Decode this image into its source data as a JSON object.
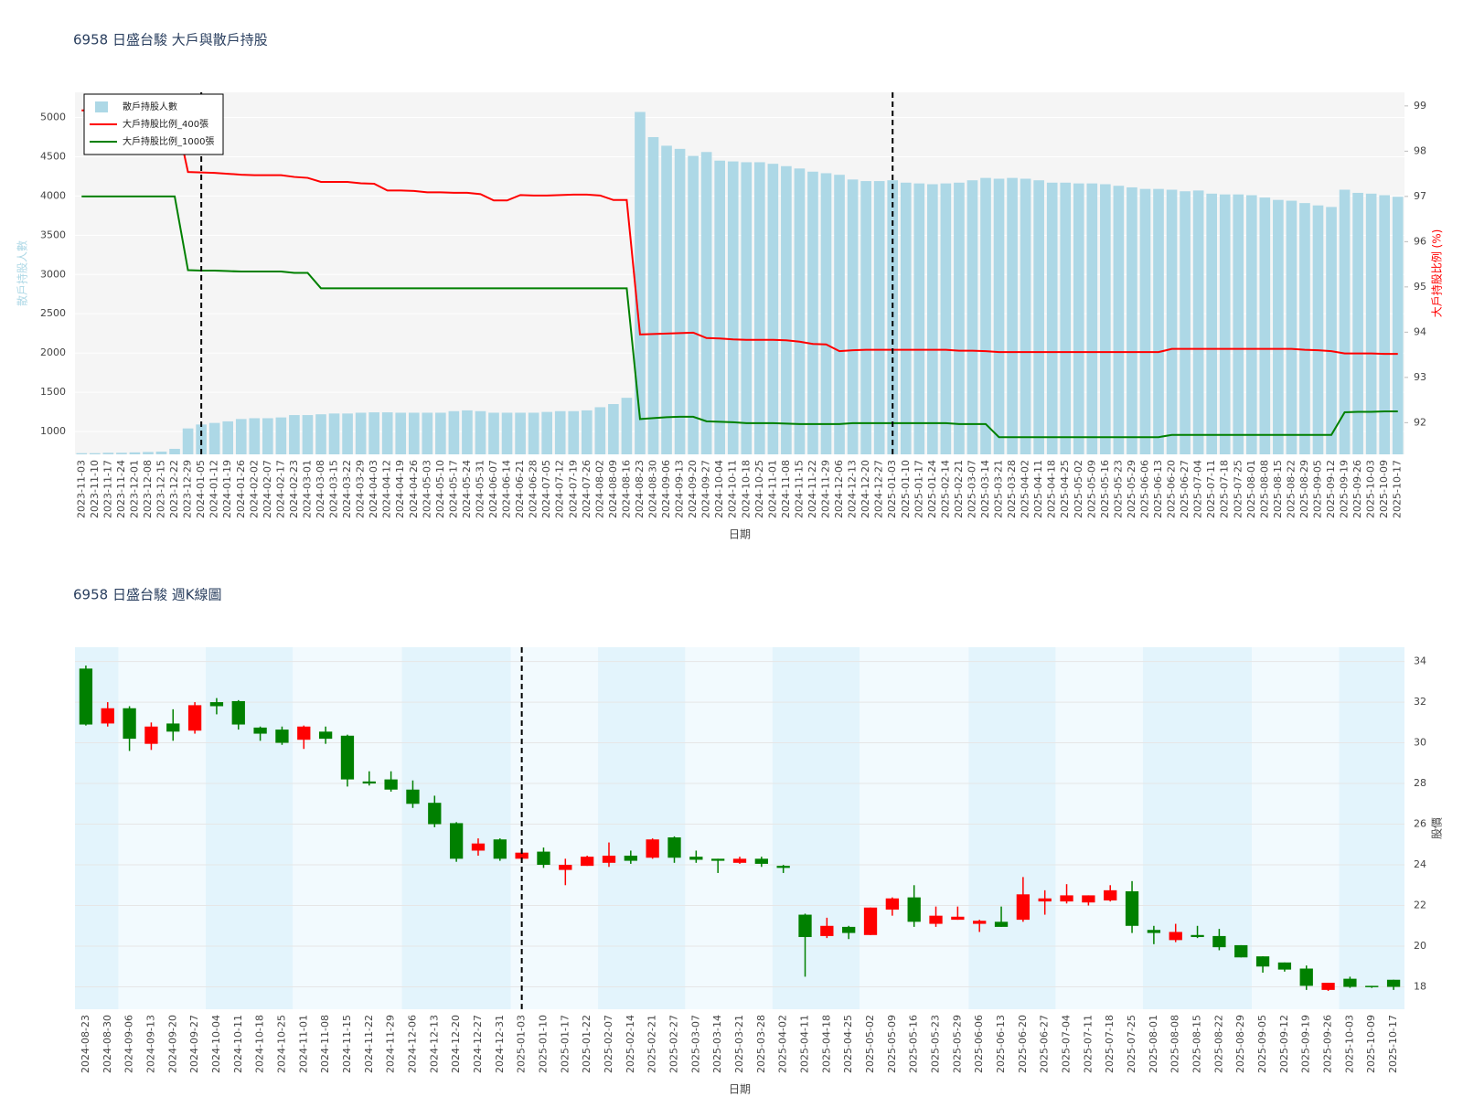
{
  "chart_data": [
    {
      "type": "combo",
      "title": "6958 日盛台駿 大戶與散戶持股",
      "x_label": "日期",
      "y_label": "散戶持股人數",
      "y2_label": "大戶持股比例 (%)",
      "categories": [
        "2023-11-03",
        "2023-11-10",
        "2023-11-17",
        "2023-11-24",
        "2023-12-01",
        "2023-12-08",
        "2023-12-15",
        "2023-12-22",
        "2023-12-29",
        "2024-01-05",
        "2024-01-12",
        "2024-01-19",
        "2024-01-26",
        "2024-02-02",
        "2024-02-07",
        "2024-02-17",
        "2024-02-23",
        "2024-03-01",
        "2024-03-08",
        "2024-03-15",
        "2024-03-22",
        "2024-03-29",
        "2024-04-03",
        "2024-04-12",
        "2024-04-19",
        "2024-04-26",
        "2024-05-03",
        "2024-05-10",
        "2024-05-17",
        "2024-05-24",
        "2024-05-31",
        "2024-06-07",
        "2024-06-14",
        "2024-06-21",
        "2024-06-28",
        "2024-07-05",
        "2024-07-12",
        "2024-07-19",
        "2024-07-26",
        "2024-08-02",
        "2024-08-09",
        "2024-08-16",
        "2024-08-23",
        "2024-08-30",
        "2024-09-06",
        "2024-09-13",
        "2024-09-20",
        "2024-09-27",
        "2024-10-04",
        "2024-10-11",
        "2024-10-18",
        "2024-10-25",
        "2024-11-01",
        "2024-11-08",
        "2024-11-15",
        "2024-11-22",
        "2024-11-29",
        "2024-12-06",
        "2024-12-13",
        "2024-12-20",
        "2024-12-27",
        "2025-01-03",
        "2025-01-10",
        "2025-01-17",
        "2025-01-24",
        "2025-02-14",
        "2025-02-21",
        "2025-03-07",
        "2025-03-14",
        "2025-03-21",
        "2025-03-28",
        "2025-04-02",
        "2025-04-11",
        "2025-04-18",
        "2025-04-25",
        "2025-05-02",
        "2025-05-09",
        "2025-05-16",
        "2025-05-23",
        "2025-05-29",
        "2025-06-06",
        "2025-06-13",
        "2025-06-20",
        "2025-06-27",
        "2025-07-04",
        "2025-07-11",
        "2025-07-18",
        "2025-07-25",
        "2025-08-01",
        "2025-08-08",
        "2025-08-15",
        "2025-08-22",
        "2025-08-29",
        "2025-09-05",
        "2025-09-12",
        "2025-09-19",
        "2025-09-26",
        "2025-10-03",
        "2025-10-09",
        "2025-10-17"
      ],
      "series": [
        {
          "name": "散戶持股人數",
          "kind": "bar",
          "color": "#add8e6",
          "values": [
            725,
            725,
            730,
            730,
            735,
            740,
            745,
            780,
            1040,
            1090,
            1110,
            1130,
            1160,
            1170,
            1170,
            1180,
            1210,
            1210,
            1220,
            1230,
            1230,
            1240,
            1245,
            1245,
            1240,
            1240,
            1240,
            1240,
            1260,
            1270,
            1260,
            1240,
            1240,
            1240,
            1240,
            1250,
            1260,
            1260,
            1270,
            1310,
            1350,
            1430,
            5070,
            4750,
            4640,
            4600,
            4510,
            4560,
            4450,
            4440,
            4430,
            4430,
            4410,
            4380,
            4350,
            4310,
            4290,
            4270,
            4210,
            4190,
            4190,
            4200,
            4170,
            4160,
            4150,
            4160,
            4170,
            4200,
            4230,
            4220,
            4230,
            4220,
            4200,
            4170,
            4170,
            4160,
            4160,
            4150,
            4130,
            4110,
            4090,
            4090,
            4080,
            4060,
            4070,
            4030,
            4020,
            4020,
            4010,
            3980,
            3950,
            3940,
            3910,
            3880,
            3860,
            4080,
            4040,
            4030,
            4010,
            3990
          ]
        },
        {
          "name": "大戶持股比例_400張",
          "kind": "line",
          "axis": "y2",
          "color": "#ff0000",
          "values": [
            98.9,
            98.9,
            98.9,
            98.9,
            98.9,
            98.9,
            98.9,
            98.9,
            97.54,
            97.53,
            97.52,
            97.5,
            97.48,
            97.47,
            97.47,
            97.47,
            97.43,
            97.41,
            97.32,
            97.32,
            97.32,
            97.29,
            97.28,
            97.13,
            97.13,
            97.12,
            97.09,
            97.09,
            97.08,
            97.08,
            97.05,
            96.91,
            96.91,
            97.03,
            97.02,
            97.02,
            97.03,
            97.04,
            97.04,
            97.02,
            96.92,
            96.92,
            93.95,
            93.96,
            93.97,
            93.98,
            93.99,
            93.87,
            93.86,
            93.84,
            93.83,
            93.83,
            93.83,
            93.82,
            93.79,
            93.74,
            93.73,
            93.58,
            93.6,
            93.61,
            93.61,
            93.61,
            93.61,
            93.61,
            93.61,
            93.61,
            93.59,
            93.59,
            93.58,
            93.56,
            93.56,
            93.56,
            93.56,
            93.56,
            93.56,
            93.56,
            93.56,
            93.56,
            93.56,
            93.56,
            93.56,
            93.56,
            93.63,
            93.63,
            93.63,
            93.63,
            93.63,
            93.63,
            93.63,
            93.63,
            93.63,
            93.63,
            93.61,
            93.6,
            93.58,
            93.53,
            93.53,
            93.53,
            93.52,
            93.52
          ]
        },
        {
          "name": "大戶持股比例_1000張",
          "kind": "line",
          "axis": "y2",
          "color": "#008000",
          "values": [
            97.0,
            97.0,
            97.0,
            97.0,
            97.0,
            97.0,
            97.0,
            97.0,
            95.37,
            95.36,
            95.36,
            95.35,
            95.34,
            95.34,
            95.34,
            95.34,
            95.31,
            95.31,
            94.97,
            94.97,
            94.97,
            94.97,
            94.97,
            94.97,
            94.97,
            94.97,
            94.97,
            94.97,
            94.97,
            94.97,
            94.97,
            94.97,
            94.97,
            94.97,
            94.97,
            94.97,
            94.97,
            94.97,
            94.97,
            94.97,
            94.97,
            94.97,
            92.08,
            92.1,
            92.12,
            92.13,
            92.13,
            92.03,
            92.02,
            92.01,
            91.99,
            91.99,
            91.99,
            91.98,
            91.97,
            91.97,
            91.97,
            91.97,
            91.99,
            91.99,
            91.99,
            91.99,
            91.99,
            91.99,
            91.99,
            91.99,
            91.97,
            91.97,
            91.97,
            91.68,
            91.68,
            91.68,
            91.68,
            91.68,
            91.68,
            91.68,
            91.68,
            91.68,
            91.68,
            91.68,
            91.68,
            91.68,
            91.73,
            91.73,
            91.73,
            91.73,
            91.73,
            91.73,
            91.73,
            91.73,
            91.73,
            91.73,
            91.73,
            91.73,
            91.73,
            92.23,
            92.24,
            92.24,
            92.25,
            92.25
          ]
        }
      ],
      "ylim": [
        710,
        5320
      ],
      "yticks": [
        1000,
        1500,
        2000,
        2500,
        3000,
        3500,
        4000,
        4500,
        5000
      ],
      "y2lim": [
        91.3,
        99.3
      ],
      "y2ticks": [
        92,
        93,
        94,
        95,
        96,
        97,
        98,
        99
      ],
      "vlines": [
        "2024-01-05",
        "2025-01-03"
      ],
      "legend": "top-left",
      "grid": true,
      "plot_bgcolor": "#f5f5f5"
    },
    {
      "type": "candlestick",
      "title": "6958 日盛台駿 週K線圖",
      "x_label": "日期",
      "y_label": "股價",
      "categories": [
        "2024-08-23",
        "2024-08-30",
        "2024-09-06",
        "2024-09-13",
        "2024-09-20",
        "2024-09-27",
        "2024-10-04",
        "2024-10-11",
        "2024-10-18",
        "2024-10-25",
        "2024-11-01",
        "2024-11-08",
        "2024-11-15",
        "2024-11-22",
        "2024-11-29",
        "2024-12-06",
        "2024-12-13",
        "2024-12-20",
        "2024-12-27",
        "2024-12-31",
        "2025-01-03",
        "2025-01-10",
        "2025-01-17",
        "2025-01-22",
        "2025-02-07",
        "2025-02-14",
        "2025-02-21",
        "2025-02-27",
        "2025-03-07",
        "2025-03-14",
        "2025-03-21",
        "2025-03-28",
        "2025-04-02",
        "2025-04-11",
        "2025-04-18",
        "2025-04-25",
        "2025-05-02",
        "2025-05-09",
        "2025-05-16",
        "2025-05-23",
        "2025-05-29",
        "2025-06-06",
        "2025-06-13",
        "2025-06-20",
        "2025-06-27",
        "2025-07-04",
        "2025-07-11",
        "2025-07-18",
        "2025-07-25",
        "2025-08-01",
        "2025-08-08",
        "2025-08-15",
        "2025-08-22",
        "2025-08-29",
        "2025-09-05",
        "2025-09-12",
        "2025-09-19",
        "2025-09-26",
        "2025-10-03",
        "2025-10-09",
        "2025-10-17"
      ],
      "open": [
        33.65,
        30.95,
        31.7,
        29.95,
        30.95,
        30.6,
        32.0,
        32.05,
        30.75,
        30.65,
        30.15,
        30.55,
        30.35,
        28.1,
        28.2,
        27.7,
        27.05,
        26.05,
        24.7,
        25.25,
        24.3,
        24.65,
        23.75,
        23.95,
        24.1,
        24.45,
        24.35,
        25.35,
        24.4,
        24.3,
        24.1,
        24.3,
        23.95,
        21.55,
        20.5,
        20.95,
        20.55,
        21.8,
        22.4,
        21.1,
        21.3,
        21.1,
        21.2,
        21.3,
        22.2,
        22.2,
        22.15,
        22.25,
        22.7,
        20.8,
        20.3,
        20.55,
        20.5,
        20.05,
        19.5,
        19.2,
        18.9,
        17.85,
        18.4,
        18.05,
        18.35
      ],
      "high": [
        33.8,
        32.0,
        31.8,
        31.0,
        31.65,
        32.0,
        32.2,
        32.1,
        30.8,
        30.8,
        30.85,
        30.8,
        30.4,
        28.6,
        28.6,
        28.15,
        27.4,
        26.1,
        25.3,
        25.3,
        24.8,
        24.85,
        24.3,
        24.45,
        25.1,
        24.7,
        25.3,
        25.4,
        24.7,
        24.3,
        24.4,
        24.4,
        24.0,
        21.6,
        21.4,
        21.0,
        21.9,
        22.4,
        23.0,
        21.95,
        21.95,
        21.3,
        21.95,
        23.4,
        22.75,
        23.05,
        22.5,
        23.0,
        23.2,
        21.0,
        21.1,
        21.0,
        20.85,
        20.05,
        19.5,
        19.2,
        19.05,
        18.2,
        18.5,
        18.05,
        18.35
      ],
      "low": [
        30.85,
        30.8,
        29.6,
        29.65,
        30.1,
        30.45,
        31.4,
        30.65,
        30.1,
        29.9,
        29.7,
        29.95,
        27.85,
        27.9,
        27.6,
        26.8,
        25.85,
        24.15,
        24.45,
        24.2,
        24.1,
        23.85,
        23.0,
        23.95,
        23.9,
        24.05,
        24.3,
        24.1,
        24.1,
        23.6,
        24.05,
        23.9,
        23.6,
        18.5,
        20.4,
        20.35,
        20.55,
        21.5,
        20.95,
        20.95,
        21.3,
        20.7,
        20.95,
        21.2,
        21.55,
        22.1,
        22.0,
        22.2,
        20.65,
        20.1,
        20.2,
        20.4,
        19.8,
        19.45,
        18.7,
        18.75,
        17.85,
        17.8,
        17.95,
        17.95,
        17.85
      ],
      "close": [
        30.9,
        31.7,
        30.2,
        30.8,
        30.55,
        31.85,
        31.8,
        30.9,
        30.45,
        30.0,
        30.8,
        30.2,
        28.2,
        28.0,
        27.7,
        27.0,
        26.0,
        24.3,
        25.05,
        24.3,
        24.6,
        24.0,
        24.0,
        24.4,
        24.45,
        24.2,
        25.25,
        24.35,
        24.25,
        24.2,
        24.3,
        24.05,
        23.85,
        20.45,
        21.0,
        20.65,
        21.9,
        22.35,
        21.2,
        21.5,
        21.45,
        21.25,
        20.95,
        22.55,
        22.35,
        22.5,
        22.5,
        22.75,
        21.0,
        20.65,
        20.7,
        20.45,
        19.95,
        19.45,
        19.0,
        18.85,
        18.05,
        18.2,
        18.0,
        18.0,
        18.0
      ],
      "increasing_color": "#ff0000",
      "decreasing_color": "#008000",
      "ylim": [
        16.9,
        34.7
      ],
      "yticks": [
        18,
        20,
        22,
        24,
        26,
        28,
        30,
        32,
        34
      ],
      "vlines": [
        "2025-01-03"
      ],
      "grid": true,
      "month_shading": [
        "#e3f4fc",
        "#f2fafe"
      ]
    }
  ]
}
